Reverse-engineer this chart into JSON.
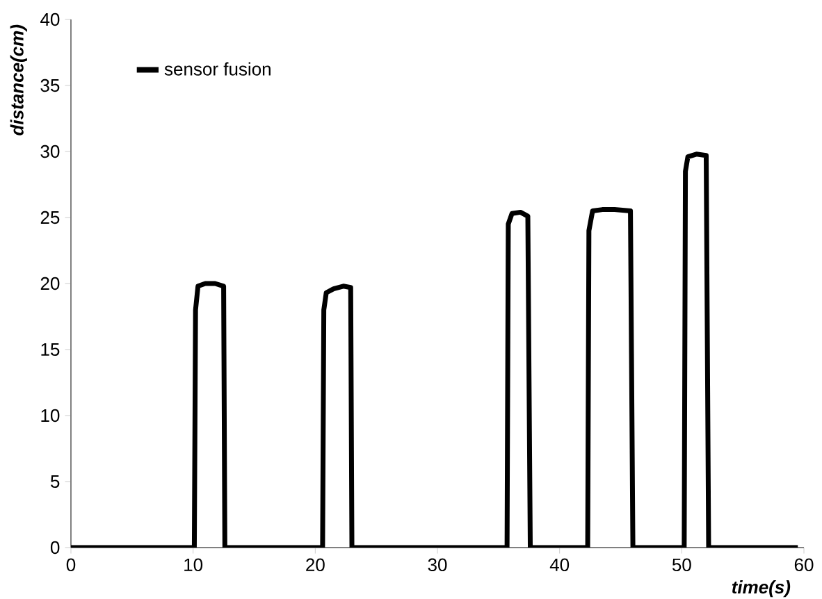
{
  "chart_data": {
    "type": "line",
    "xlabel": "time(s)",
    "ylabel": "distance(cm)",
    "xlim": [
      0,
      60
    ],
    "ylim": [
      0,
      40
    ],
    "xticks": [
      0,
      10,
      20,
      30,
      40,
      50,
      60
    ],
    "yticks": [
      0,
      5,
      10,
      15,
      20,
      25,
      30,
      35,
      40
    ],
    "grid": false,
    "legend": "top left",
    "marker": "none",
    "line_style": "solid",
    "series": [
      {
        "name": "sensor fusion",
        "color": "#000000",
        "x": [
          0,
          10.1,
          10.2,
          10.4,
          11,
          11.8,
          12.5,
          12.6,
          20.6,
          20.7,
          20.9,
          21.5,
          22.3,
          22.9,
          23.0,
          35.7,
          35.8,
          36.1,
          36.8,
          37.4,
          37.6,
          42.3,
          42.4,
          42.7,
          43.5,
          44.5,
          45.8,
          46.0,
          50.2,
          50.3,
          50.5,
          51.2,
          52.0,
          52.2,
          59.5
        ],
        "values": [
          0,
          0,
          18,
          19.8,
          20,
          20,
          19.8,
          0,
          0,
          18,
          19.3,
          19.6,
          19.8,
          19.7,
          0,
          0,
          24.5,
          25.3,
          25.4,
          25.1,
          0,
          0,
          24,
          25.5,
          25.6,
          25.6,
          25.5,
          0,
          0,
          28.5,
          29.6,
          29.8,
          29.7,
          0,
          0
        ]
      }
    ]
  }
}
